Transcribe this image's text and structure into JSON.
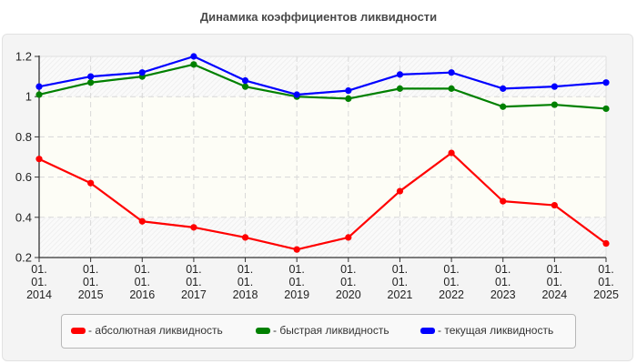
{
  "title": "Динамика коэффициентов ликвидности",
  "legend": [
    {
      "label": "- абсолютная ликвидность",
      "color": "#ff0000"
    },
    {
      "label": "- быстрая ликвидность",
      "color": "#008000"
    },
    {
      "label": "- текущая ликвидность",
      "color": "#0000ff"
    }
  ],
  "chart_data": {
    "type": "line",
    "title": "Динамика коэффициентов ликвидности",
    "xlabel": "",
    "ylabel": "",
    "x": [
      "01.01.2014",
      "01.01.2015",
      "01.01.2016",
      "01.01.2017",
      "01.01.2018",
      "01.01.2019",
      "01.01.2020",
      "01.01.2021",
      "01.01.2022",
      "01.01.2023",
      "01.01.2024",
      "01.01.2025"
    ],
    "x_tick_labels": [
      [
        "01.",
        "01.",
        "2014"
      ],
      [
        "01.",
        "01.",
        "2015"
      ],
      [
        "01.",
        "01.",
        "2016"
      ],
      [
        "01.",
        "01.",
        "2017"
      ],
      [
        "01.",
        "01.",
        "2018"
      ],
      [
        "01.",
        "01.",
        "2019"
      ],
      [
        "01.",
        "01.",
        "2020"
      ],
      [
        "01.",
        "01.",
        "2021"
      ],
      [
        "01.",
        "01.",
        "2022"
      ],
      [
        "01.",
        "01.",
        "2023"
      ],
      [
        "01.",
        "01.",
        "2024"
      ],
      [
        "01.",
        "01.",
        "2025"
      ]
    ],
    "y_ticks": [
      0.2,
      0.4,
      0.6,
      0.8,
      1,
      1.2
    ],
    "y_tick_labels": [
      "0.2",
      "0.4",
      "0.6",
      "0.8",
      "1",
      "1.2"
    ],
    "ylim": [
      0.2,
      1.2
    ],
    "grid": true,
    "highlight_band": [
      0.4,
      1.0
    ],
    "legend_position": "bottom",
    "series": [
      {
        "name": "- абсолютная ликвидность",
        "color": "#ff0000",
        "values": [
          0.69,
          0.57,
          0.38,
          0.35,
          0.3,
          0.24,
          0.3,
          0.53,
          0.72,
          0.48,
          0.46,
          0.27
        ]
      },
      {
        "name": "- быстрая ликвидность",
        "color": "#008000",
        "values": [
          1.01,
          1.07,
          1.1,
          1.16,
          1.05,
          1.0,
          0.99,
          1.04,
          1.04,
          0.95,
          0.96,
          0.94
        ]
      },
      {
        "name": "- текущая ликвидность",
        "color": "#0000ff",
        "values": [
          1.05,
          1.1,
          1.12,
          1.2,
          1.08,
          1.01,
          1.03,
          1.11,
          1.12,
          1.04,
          1.05,
          1.07
        ]
      }
    ]
  }
}
